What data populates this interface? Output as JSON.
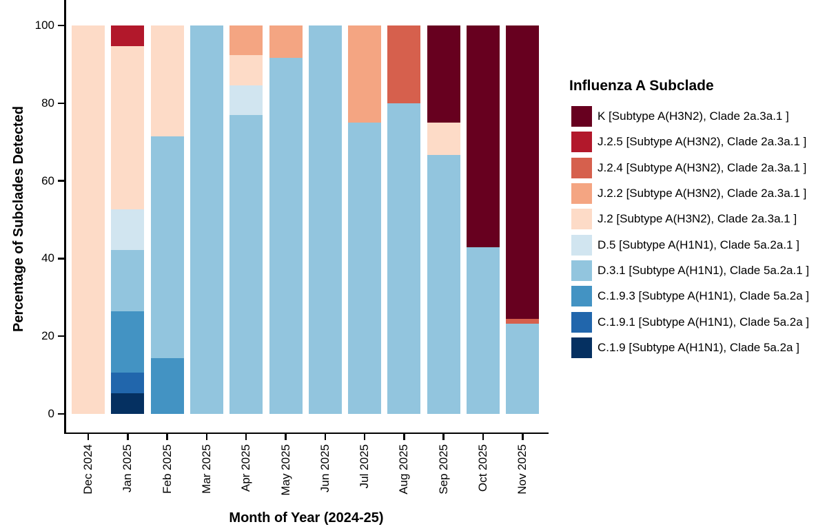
{
  "chart_data": {
    "type": "bar",
    "stacked": true,
    "percent_scale": true,
    "xlabel": "Month of Year (2024-25)",
    "ylabel": "Percentage of Subclades Detected",
    "legend_title": "Influenza A Subclade",
    "legend_position": "right",
    "grid": false,
    "ylim": [
      0,
      100
    ],
    "yticks": [
      0,
      20,
      40,
      60,
      80,
      100
    ],
    "categories": [
      "Dec 2024",
      "Jan 2025",
      "Feb 2025",
      "Mar 2025",
      "Apr 2025",
      "May 2025",
      "Jun 2025",
      "Jul 2025",
      "Aug 2025",
      "Sep 2025",
      "Oct 2025",
      "Nov 2025"
    ],
    "series": [
      {
        "name": "K",
        "label": "K [Subtype A(H3N2), Clade 2a.3a.1 ]",
        "color": "#67001f",
        "values": [
          0,
          0,
          0,
          0,
          0,
          0,
          0,
          0,
          0,
          25,
          57.1,
          75.5
        ]
      },
      {
        "name": "J.2.5",
        "label": "J.2.5 [Subtype A(H3N2), Clade 2a.3a.1 ]",
        "color": "#b2182b",
        "values": [
          0,
          5.3,
          0,
          0,
          0,
          0,
          0,
          0,
          0,
          0,
          0,
          0
        ]
      },
      {
        "name": "J.2.4",
        "label": "J.2.4 [Subtype A(H3N2), Clade 2a.3a.1 ]",
        "color": "#d6604d",
        "values": [
          0,
          0,
          0,
          0,
          0,
          0,
          0,
          0,
          20,
          0,
          0,
          1.2
        ]
      },
      {
        "name": "J.2.2",
        "label": "J.2.2 [Subtype A(H3N2), Clade 2a.3a.1 ]",
        "color": "#f4a582",
        "values": [
          0,
          0,
          0,
          0,
          7.7,
          8.3,
          0,
          25,
          0,
          0,
          0,
          0
        ]
      },
      {
        "name": "J.2",
        "label": "J.2 [Subtype A(H3N2), Clade 2a.3a.1 ]",
        "color": "#fddbc7",
        "values": [
          100,
          42,
          28.6,
          0,
          7.7,
          0,
          0,
          0,
          0,
          8.3,
          0,
          0
        ]
      },
      {
        "name": "D.5",
        "label": "D.5 [Subtype A(H1N1), Clade 5a.2a.1 ]",
        "color": "#d1e5f0",
        "values": [
          0,
          10.5,
          0,
          0,
          7.7,
          0,
          0,
          0,
          0,
          0,
          0,
          0
        ]
      },
      {
        "name": "D.3.1",
        "label": "D.3.1 [Subtype A(H1N1), Clade 5a.2a.1 ]",
        "color": "#92c5de",
        "values": [
          0,
          15.8,
          57.1,
          100,
          76.9,
          91.7,
          100,
          75,
          80,
          66.7,
          42.9,
          23.3
        ]
      },
      {
        "name": "C.1.9.3",
        "label": "C.1.9.3 [Subtype A(H1N1), Clade 5a.2a ]",
        "color": "#4393c3",
        "values": [
          0,
          15.8,
          14.3,
          0,
          0,
          0,
          0,
          0,
          0,
          0,
          0,
          0
        ]
      },
      {
        "name": "C.1.9.1",
        "label": "C.1.9.1 [Subtype A(H1N1), Clade 5a.2a ]",
        "color": "#2166ac",
        "values": [
          0,
          5.3,
          0,
          0,
          0,
          0,
          0,
          0,
          0,
          0,
          0,
          0
        ]
      },
      {
        "name": "C.1.9",
        "label": "C.1.9 [Subtype A(H1N1), Clade 5a.2a ]",
        "color": "#053061",
        "values": [
          0,
          5.3,
          0,
          0,
          0,
          0,
          0,
          0,
          0,
          0,
          0,
          0
        ]
      }
    ],
    "axis_color": "#000000",
    "background_color": "#ffffff"
  }
}
